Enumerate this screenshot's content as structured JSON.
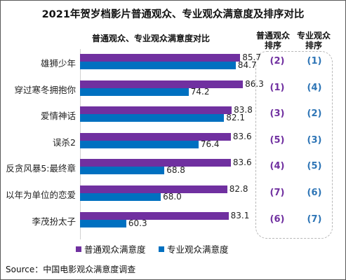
{
  "title": "2021年贺岁档影片普通观众、专业观众满意度及排序对比",
  "source": "Source：中国电影观众满意度调查",
  "chart_data": {
    "type": "bar",
    "orientation": "horizontal",
    "title": "普通观众、专业观众满意度对比",
    "categories": [
      "雄狮少年",
      "穿过寒冬拥抱你",
      "爱情神话",
      "误杀2",
      "反贪风暴5:最终章",
      "以年为单位的恋爱",
      "李茂扮太子"
    ],
    "series": [
      {
        "name": "普通观众满意度",
        "values": [
          85.7,
          86.3,
          83.8,
          83.6,
          83.6,
          82.8,
          83.1
        ]
      },
      {
        "name": "专业观众满意度",
        "values": [
          84.7,
          74.2,
          82.1,
          76.4,
          68.8,
          68.0,
          60.3
        ]
      }
    ],
    "xlim": [
      50,
      88
    ],
    "legend": "bottom"
  },
  "ranks": {
    "general_header": "普通观众排序",
    "pro_header": "专业观众排序",
    "general": [
      "(2)",
      "(1)",
      "(3)",
      "(5)",
      "(4)",
      "(7)",
      "(6)"
    ],
    "pro": [
      "(1)",
      "(4)",
      "(2)",
      "(3)",
      "(5)",
      "(6)",
      "(7)"
    ]
  },
  "colors": {
    "general": "#7030a0",
    "pro": "#0070c0",
    "general_rank": "#7030a0",
    "pro_rank": "#2e75b6"
  }
}
